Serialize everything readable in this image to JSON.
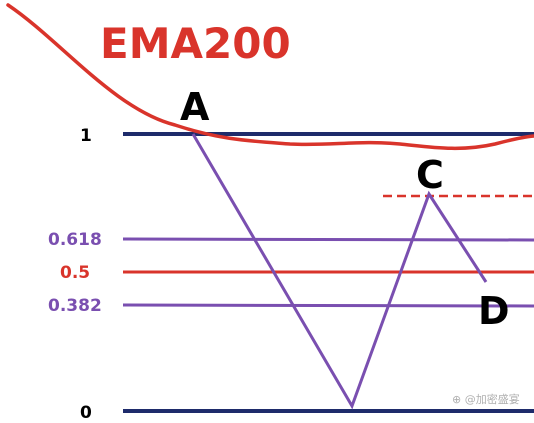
{
  "title": "EMA200",
  "levels": [
    {
      "label": "1",
      "value": 1,
      "kind": "full"
    },
    {
      "label": "0.618",
      "value": 0.618,
      "kind": "fib"
    },
    {
      "label": "0.5",
      "value": 0.5,
      "kind": "mid"
    },
    {
      "label": "0.382",
      "value": 0.382,
      "kind": "fib"
    },
    {
      "label": "0",
      "value": 0,
      "kind": "full"
    }
  ],
  "points": [
    {
      "label": "A",
      "level": 1
    },
    {
      "label": "C",
      "level": 0.74
    },
    {
      "label": "D",
      "level": 0.43
    }
  ],
  "watermark": "⊕ @加密盛宴",
  "colors": {
    "navy": "#1e2b6b",
    "purple": "#7a4fb0",
    "red": "#d9342b",
    "ema": "#d9342b",
    "zigzag": "#7a4fb0",
    "watermark": "#b0b0b0"
  }
}
